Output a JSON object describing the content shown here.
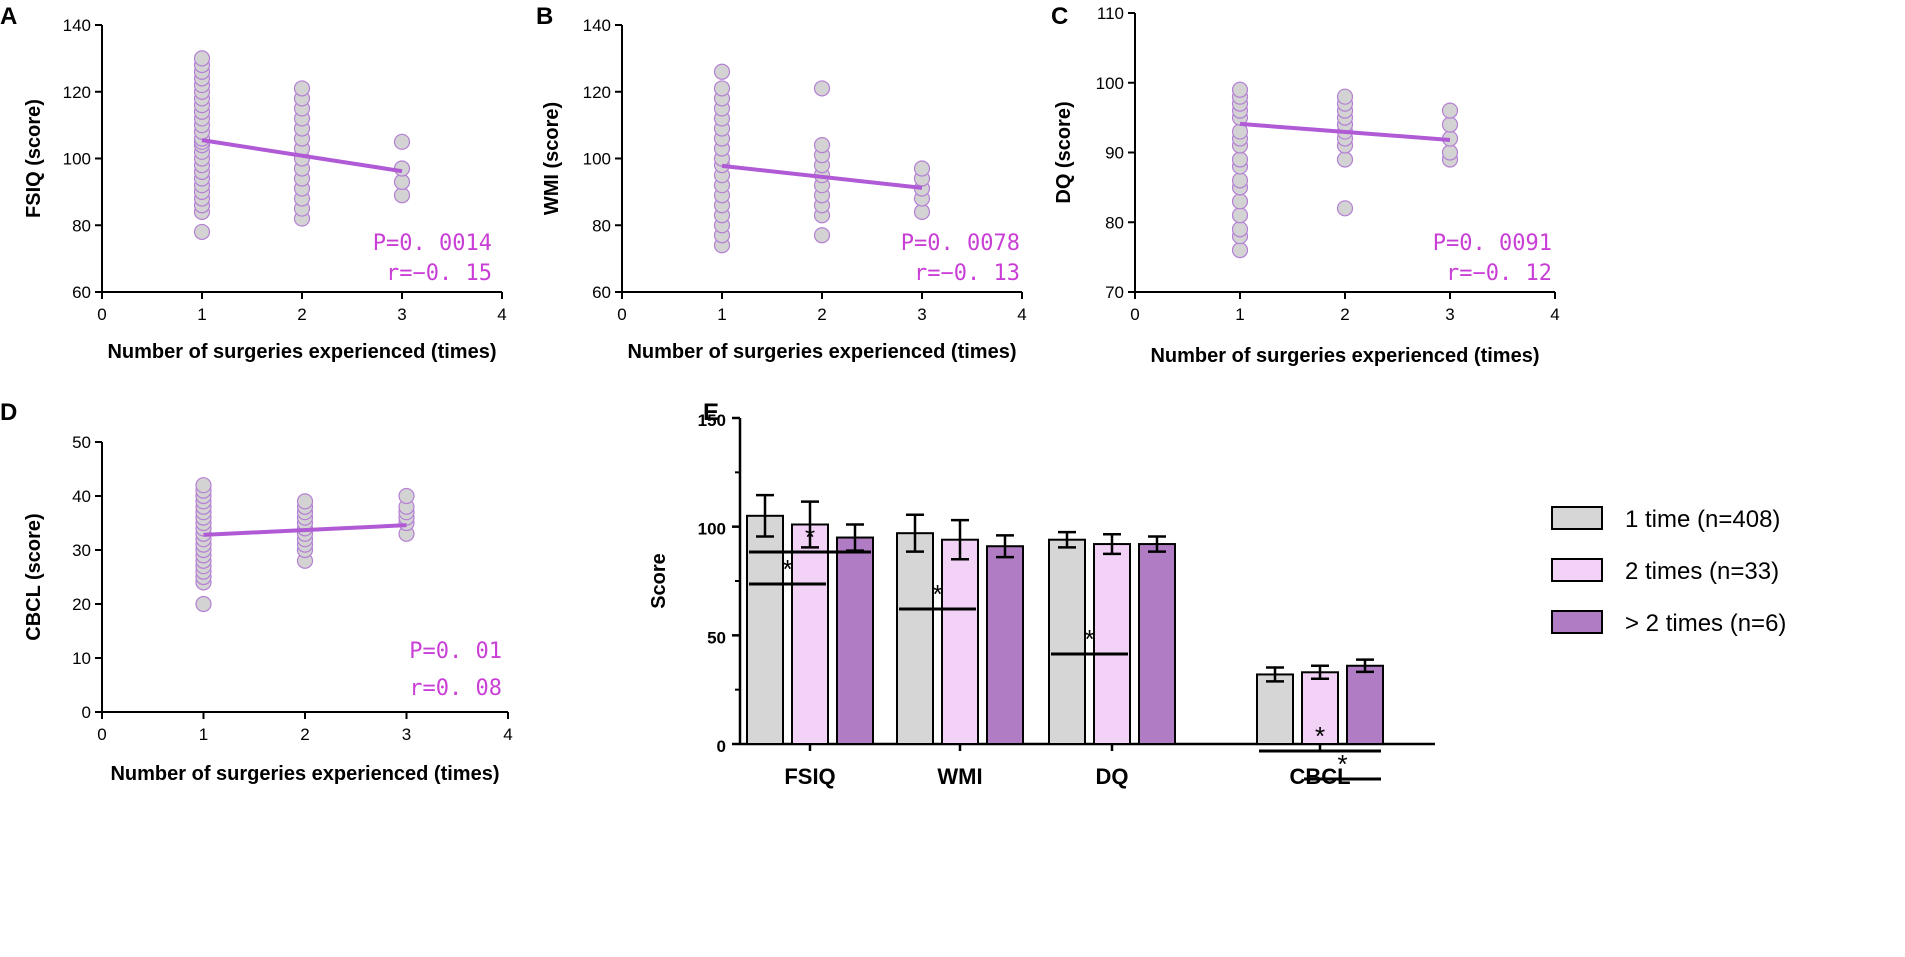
{
  "colors": {
    "dot_fill": "#d3d3d3",
    "dot_stroke": "#b47fd4",
    "trend": "#b05ad6",
    "stat_text": "#c93fd6",
    "bar_1": "#d6d6d6",
    "bar_2": "#f2d2f7",
    "bar_3": "#b07cc4",
    "axis": "#000000"
  },
  "chart_data": [
    {
      "panel": "A",
      "type": "scatter",
      "xlabel": "Number of surgeries experienced (times)",
      "ylabel": "FSIQ (score)",
      "xlim": [
        0,
        4
      ],
      "ylim": [
        60,
        140
      ],
      "xticks": [
        "0",
        "1",
        "2",
        "3",
        "4"
      ],
      "yticks": [
        "60",
        "80",
        "100",
        "120",
        "140"
      ],
      "groups": [
        {
          "x": 1,
          "values": [
            78,
            84,
            86,
            88,
            90,
            92,
            94,
            96,
            98,
            100,
            102,
            104,
            105,
            106,
            108,
            110,
            112,
            114,
            116,
            118,
            120,
            122,
            124,
            126,
            128,
            130
          ]
        },
        {
          "x": 2,
          "values": [
            82,
            85,
            88,
            91,
            94,
            97,
            100,
            103,
            106,
            109,
            112,
            115,
            118,
            121
          ]
        },
        {
          "x": 3,
          "values": [
            89,
            93,
            97,
            105
          ]
        }
      ],
      "trend": {
        "x": [
          1,
          3
        ],
        "y": [
          105.5,
          96.2
        ]
      },
      "p_text": "P=0. 0014",
      "r_text": "r=−0. 15"
    },
    {
      "panel": "B",
      "type": "scatter",
      "xlabel": "Number of surgeries experienced (times)",
      "ylabel": "WMI (score)",
      "xlim": [
        0,
        4
      ],
      "ylim": [
        60,
        140
      ],
      "xticks": [
        "0",
        "1",
        "2",
        "3",
        "4"
      ],
      "yticks": [
        "60",
        "80",
        "100",
        "120",
        "140"
      ],
      "groups": [
        {
          "x": 1,
          "values": [
            74,
            77,
            80,
            83,
            86,
            89,
            92,
            95,
            98,
            100,
            103,
            106,
            109,
            112,
            115,
            118,
            121,
            126
          ]
        },
        {
          "x": 2,
          "values": [
            77,
            83,
            86,
            89,
            92,
            95,
            98,
            101,
            104,
            121
          ]
        },
        {
          "x": 3,
          "values": [
            84,
            88,
            91,
            94,
            97
          ]
        }
      ],
      "trend": {
        "x": [
          1,
          3
        ],
        "y": [
          97.8,
          91.2
        ]
      },
      "p_text": "P=0. 0078",
      "r_text": "r=−0. 13"
    },
    {
      "panel": "C",
      "type": "scatter",
      "xlabel": "Number of surgeries experienced (times)",
      "ylabel": "DQ (score)",
      "xlim": [
        0,
        4
      ],
      "ylim": [
        70,
        110
      ],
      "xticks": [
        "0",
        "1",
        "2",
        "3",
        "4"
      ],
      "yticks": [
        "70",
        "80",
        "90",
        "100",
        "110"
      ],
      "groups": [
        {
          "x": 1,
          "values": [
            76,
            78,
            79,
            81,
            83,
            85,
            86,
            88,
            89,
            91,
            92,
            93,
            95,
            96,
            97,
            98,
            99
          ]
        },
        {
          "x": 2,
          "values": [
            82,
            89,
            91,
            92,
            93,
            94,
            95,
            96,
            97,
            98
          ]
        },
        {
          "x": 3,
          "values": [
            89,
            90,
            92,
            94,
            96
          ]
        }
      ],
      "trend": {
        "x": [
          1,
          3
        ],
        "y": [
          94.1,
          91.8
        ]
      },
      "p_text": "P=0. 0091",
      "r_text": "r=−0. 12"
    },
    {
      "panel": "D",
      "type": "scatter",
      "xlabel": "Number of surgeries experienced (times)",
      "ylabel": "CBCL (score)",
      "xlim": [
        0,
        4
      ],
      "ylim": [
        0,
        50
      ],
      "xticks": [
        "0",
        "1",
        "2",
        "3",
        "4"
      ],
      "yticks": [
        "0",
        "10",
        "20",
        "30",
        "40",
        "50"
      ],
      "groups": [
        {
          "x": 1,
          "values": [
            20,
            24,
            25,
            26,
            27,
            28,
            29,
            30,
            31,
            32,
            33,
            34,
            35,
            36,
            37,
            38,
            39,
            40,
            41,
            42
          ]
        },
        {
          "x": 2,
          "values": [
            28,
            30,
            31,
            32,
            33,
            34,
            35,
            36,
            37,
            38,
            39
          ]
        },
        {
          "x": 3,
          "values": [
            33,
            35,
            36,
            37,
            38,
            40
          ]
        }
      ],
      "trend": {
        "x": [
          1,
          3
        ],
        "y": [
          32.8,
          34.6
        ]
      },
      "p_text": "P=0. 01",
      "r_text": "r=0. 08"
    },
    {
      "panel": "E",
      "type": "bar",
      "ylabel": "Score",
      "ylim": [
        0,
        150
      ],
      "yticks": [
        "0",
        "50",
        "100",
        "150"
      ],
      "categories": [
        "FSIQ",
        "WMI",
        "DQ",
        "CBCL"
      ],
      "series": [
        {
          "name": "1 time (n=408)",
          "values": [
            105,
            97,
            94,
            32
          ],
          "errors": [
            9.5,
            8.5,
            3.5,
            3.2
          ]
        },
        {
          "name": "2 times (n=33)",
          "values": [
            101,
            94,
            92,
            33
          ],
          "errors": [
            10.5,
            9,
            4.5,
            3
          ]
        },
        {
          "name": "> 2 times (n=6)",
          "values": [
            95,
            91,
            92,
            36
          ],
          "errors": [
            6,
            5,
            3.5,
            2.8
          ]
        }
      ],
      "significance": [
        {
          "category": 0,
          "from": 0,
          "to": 2,
          "label": "*"
        },
        {
          "category": 0,
          "from": 0,
          "to": 1,
          "label": "*"
        },
        {
          "category": 1,
          "from": 0,
          "to": 1,
          "label": "*"
        },
        {
          "category": 2,
          "from": 0,
          "to": 1,
          "label": "*"
        },
        {
          "category": 3,
          "from": 0,
          "to": 2,
          "label": "*"
        },
        {
          "category": 3,
          "from": 1,
          "to": 2,
          "label": "*"
        }
      ]
    }
  ]
}
